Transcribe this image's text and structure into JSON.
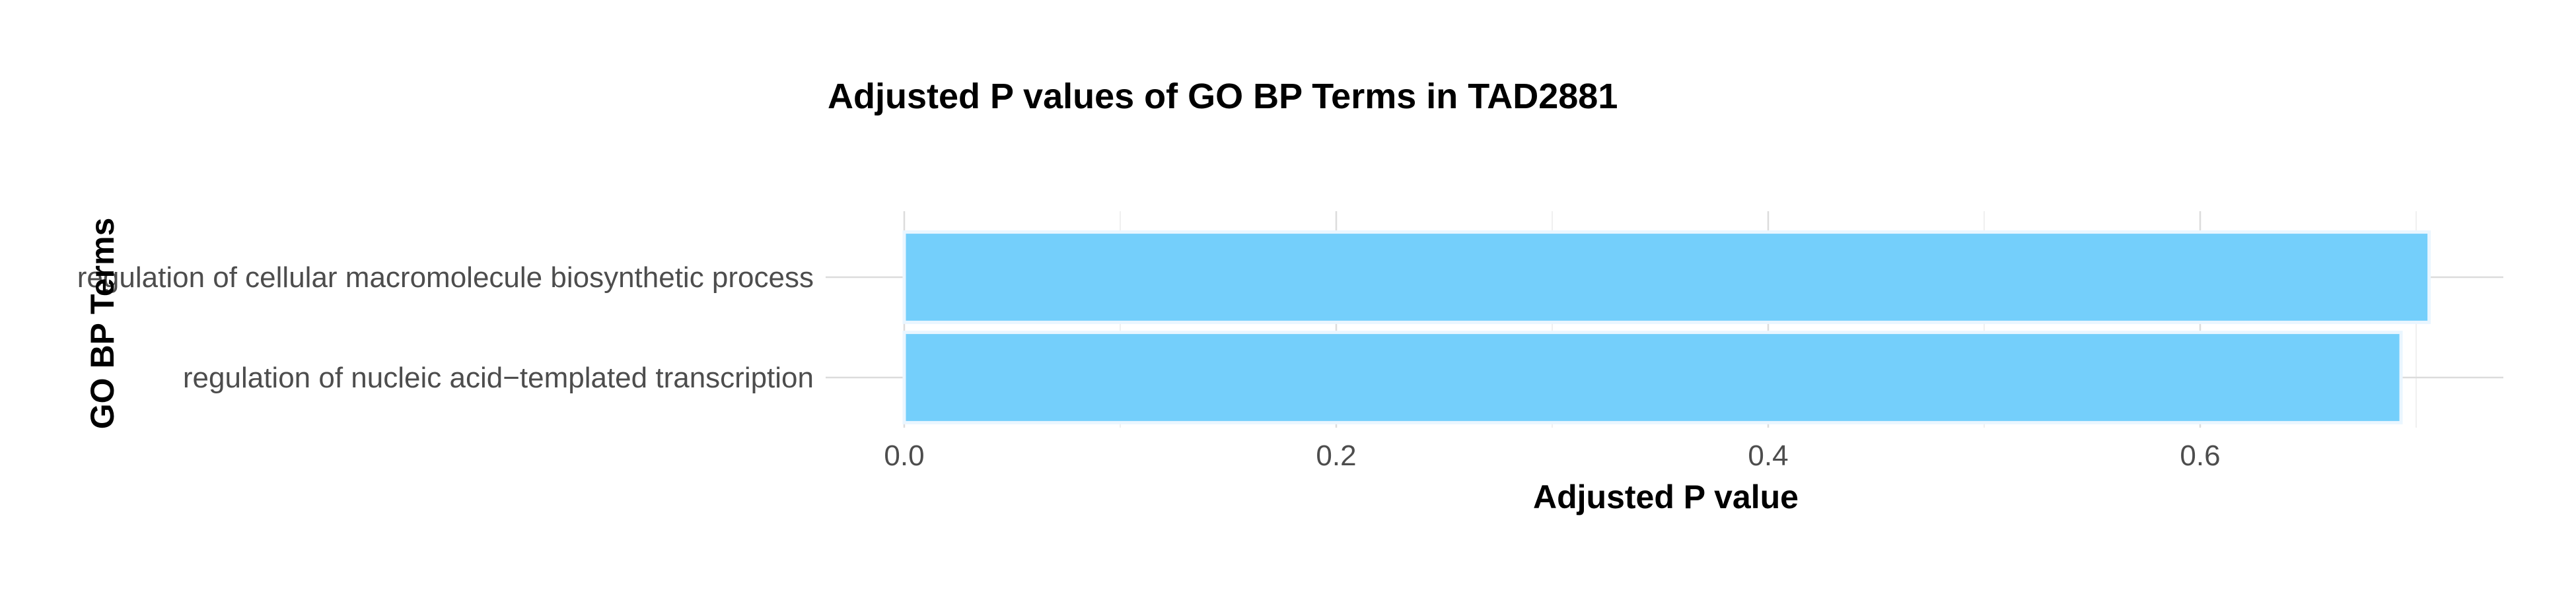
{
  "chart_data": {
    "type": "bar",
    "orientation": "horizontal",
    "title": "Adjusted P values of GO BP Terms in TAD2881",
    "xlabel": "Adjusted P value",
    "ylabel": "GO BP Terms",
    "categories": [
      "regulation of cellular macromolecule biosynthetic process",
      "regulation of nucleic acid−templated transcription"
    ],
    "values": [
      0.706,
      0.693
    ],
    "xlim": [
      0,
      0.72
    ],
    "xticks": [
      0.0,
      0.2,
      0.4,
      0.6
    ],
    "xtick_labels": [
      "0.0",
      "0.2",
      "0.4",
      "0.6"
    ],
    "grid": true,
    "legend": "none",
    "bar_color": "#74cffb"
  }
}
